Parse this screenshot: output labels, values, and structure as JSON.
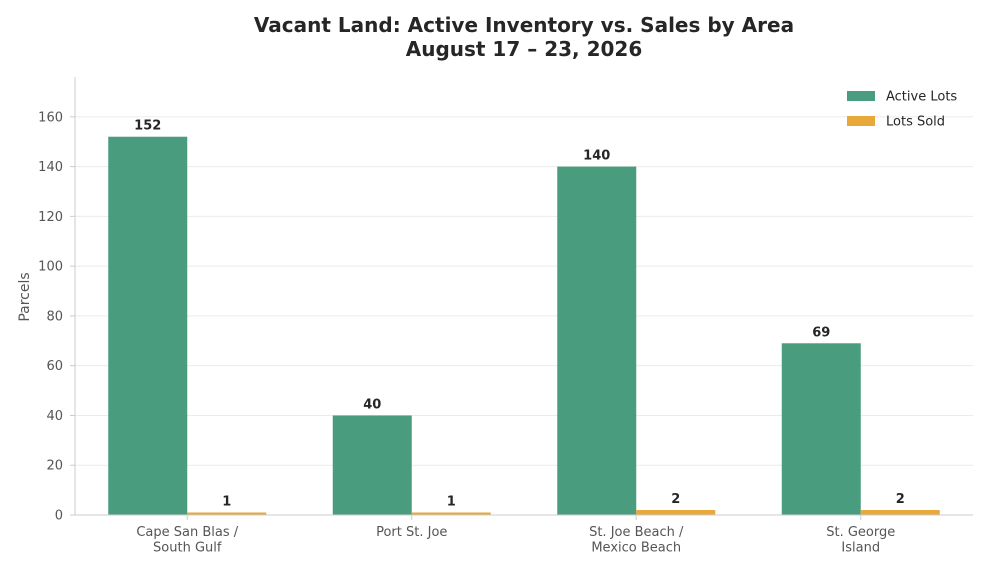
{
  "chart_data": {
    "type": "bar",
    "title": "Vacant Land: Active Inventory vs. Sales by Area",
    "subtitle": "August 17 – 23, 2026",
    "xlabel": "",
    "ylabel": "Parcels",
    "ylim": [
      0,
      176
    ],
    "yticks": [
      0,
      20,
      40,
      60,
      80,
      100,
      120,
      140,
      160
    ],
    "grid": true,
    "legend_position": "top-right",
    "categories": [
      [
        "Cape San Blas /",
        "South Gulf"
      ],
      [
        "Port St. Joe"
      ],
      [
        "St. Joe Beach /",
        "Mexico Beach"
      ],
      [
        "St. George",
        "Island"
      ]
    ],
    "series": [
      {
        "name": "Active Lots",
        "color": "#4a9c7e",
        "values": [
          152,
          40,
          140,
          69
        ]
      },
      {
        "name": "Lots Sold",
        "color": "#e8a93a",
        "values": [
          1,
          1,
          2,
          2
        ]
      }
    ]
  }
}
